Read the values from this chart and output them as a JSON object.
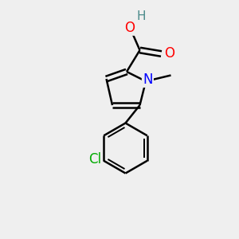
{
  "background_color": "#efefef",
  "bond_color": "#000000",
  "atom_colors": {
    "O": "#ff0000",
    "N": "#0000ff",
    "Cl": "#00aa00",
    "H": "#4a8a8a",
    "C": "#000000"
  },
  "font_size": 11,
  "bond_width": 1.8,
  "figsize": [
    3.0,
    3.0
  ],
  "dpi": 100
}
